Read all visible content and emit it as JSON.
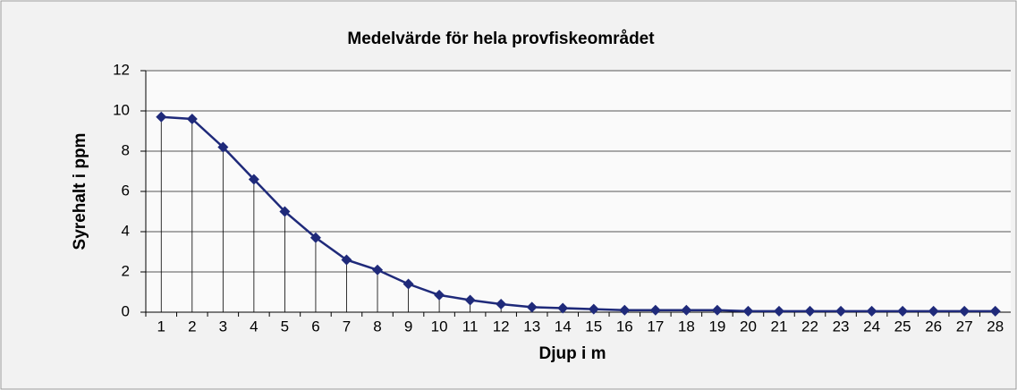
{
  "chart_data": {
    "type": "line",
    "title": "Medelvärde för hela provfiskeområdet",
    "x_label": "Djup i m",
    "y_label": "Syrehalt i ppm",
    "categories": [
      "1",
      "2",
      "3",
      "4",
      "5",
      "6",
      "7",
      "8",
      "9",
      "10",
      "11",
      "12",
      "13",
      "14",
      "15",
      "16",
      "17",
      "18",
      "19",
      "20",
      "21",
      "22",
      "23",
      "24",
      "25",
      "26",
      "27",
      "28"
    ],
    "series": [
      {
        "name": "Syrehalt",
        "color": "#1f2a7a",
        "values": [
          9.7,
          9.6,
          8.2,
          6.6,
          5.0,
          3.7,
          2.6,
          2.1,
          1.4,
          0.85,
          0.6,
          0.4,
          0.25,
          0.2,
          0.15,
          0.1,
          0.1,
          0.1,
          0.1,
          0.05,
          0.05,
          0.05,
          0.05,
          0.05,
          0.05,
          0.05,
          0.05,
          0.05
        ]
      }
    ],
    "ylim": [
      0,
      12
    ],
    "yticks": [
      0,
      2,
      4,
      6,
      8,
      10,
      12
    ],
    "grid": true,
    "drop_lines": true
  }
}
